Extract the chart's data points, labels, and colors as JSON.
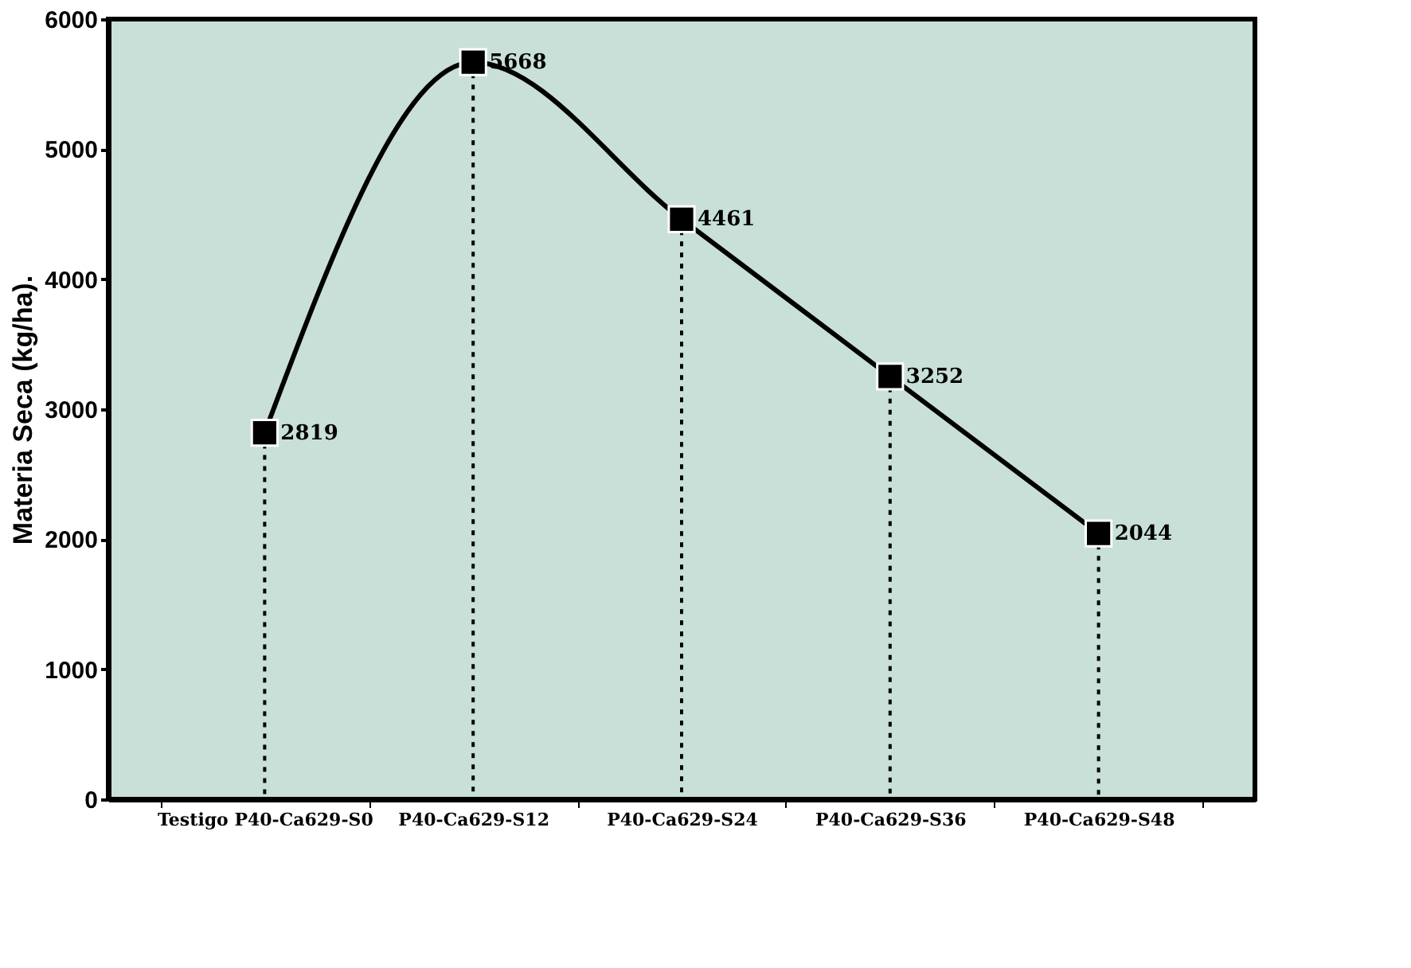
{
  "chart_data": {
    "type": "line",
    "ylabel": "Materia Seca (kg/ha).",
    "categories": [
      "Testigo P40-Ca629-S0",
      "P40-Ca629-S12",
      "P40-Ca629-S24",
      "P40-Ca629-S36",
      "P40-Ca629-S48"
    ],
    "series": [
      {
        "color": "#000000",
        "values": [
          2819,
          5668,
          4461,
          3252,
          2044
        ]
      }
    ],
    "ylim": [
      0,
      6000
    ],
    "yticks": [
      0,
      1000,
      2000,
      3000,
      4000,
      5000,
      6000
    ],
    "marker": "square",
    "line_style": "solid",
    "data_labels": true
  }
}
